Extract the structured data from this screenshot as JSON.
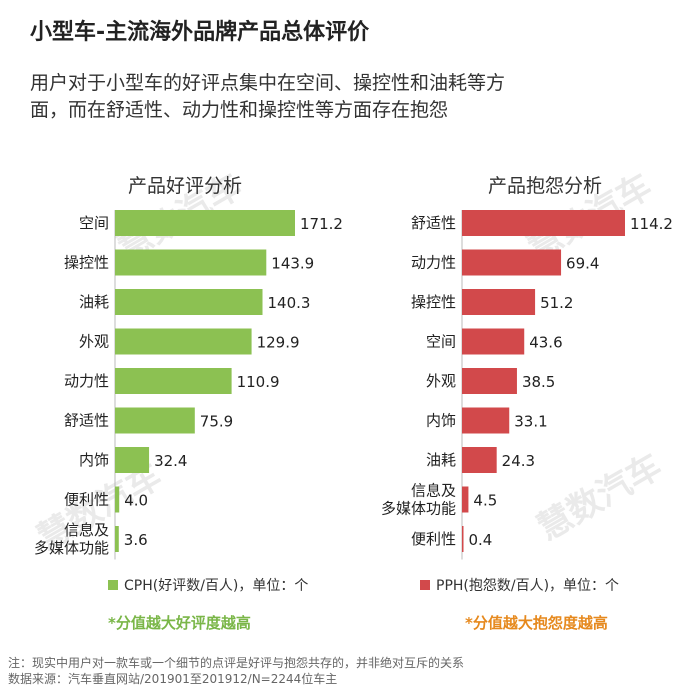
{
  "title": "小型车-主流海外品牌产品总体评价",
  "subtitle_lines": [
    "用户对于小型车的好评点集中在空间、操控性和油耗等方",
    "面，而在舒适性、动力性和操控性等方面存在抱怨"
  ],
  "watermark": "慧数汽车",
  "colors": {
    "good": "#8cc152",
    "bad": "#d2494b",
    "note_good": "#7ab648",
    "note_bad": "#e6891e"
  },
  "chart_data": [
    {
      "type": "bar",
      "orientation": "horizontal",
      "title": "产品好评分析",
      "categories": [
        "空间",
        "操控性",
        "油耗",
        "外观",
        "动力性",
        "舒适性",
        "内饰",
        "便利性",
        "信息及\n多媒体功能"
      ],
      "values": [
        171.2,
        143.9,
        140.3,
        129.9,
        110.9,
        75.9,
        32.4,
        4.0,
        3.6
      ],
      "value_labels": [
        "171.2",
        "143.9",
        "140.3",
        "129.9",
        "110.9",
        "75.9",
        "32.4",
        "4.0",
        "3.6"
      ],
      "legend": "CPH(好评数/百人)，单位：个",
      "note": "*分值越大好评度越高",
      "xlim": [
        0,
        180
      ]
    },
    {
      "type": "bar",
      "orientation": "horizontal",
      "title": "产品抱怨分析",
      "categories": [
        "舒适性",
        "动力性",
        "操控性",
        "空间",
        "外观",
        "内饰",
        "油耗",
        "信息及\n多媒体功能",
        "便利性"
      ],
      "values": [
        114.2,
        69.4,
        51.2,
        43.6,
        38.5,
        33.1,
        24.3,
        4.5,
        0.4
      ],
      "value_labels": [
        "114.2",
        "69.4",
        "51.2",
        "43.6",
        "38.5",
        "33.1",
        "24.3",
        "4.5",
        "0.4"
      ],
      "legend": "PPH(抱怨数/百人)，单位：个",
      "note": "*分值越大抱怨度越高",
      "xlim": [
        0,
        120
      ]
    }
  ],
  "footer_lines": [
    "注：现实中用户对一款车或一个细节的点评是好评与抱怨共存的，并非绝对互斥的关系",
    "数据来源：汽车垂直网站/201901至201912/N=2244位车主"
  ]
}
